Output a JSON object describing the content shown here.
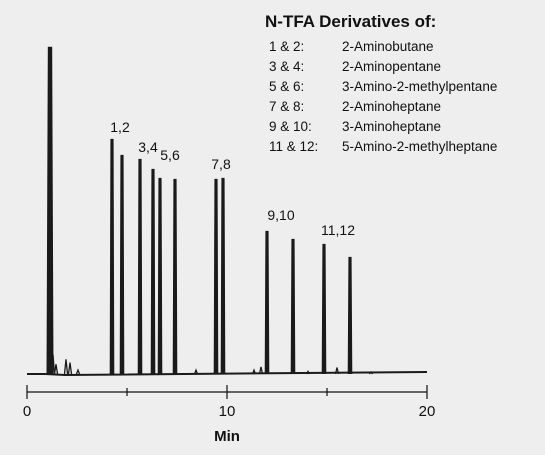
{
  "chart_data": {
    "type": "line",
    "xlabel": "Min",
    "ylabel": "",
    "xlim": [
      0,
      20
    ],
    "x_ticks": [
      0,
      10,
      20
    ],
    "minor_ticks": [
      5,
      15
    ],
    "grid": false,
    "line_color": "#1a1a1a",
    "peaks": [
      {
        "x": 1.15,
        "height": 1.0,
        "solvent": true
      },
      {
        "x": 4.25,
        "height": 0.7178
      },
      {
        "x": 4.75,
        "height": 0.6687
      },
      {
        "x": 5.65,
        "height": 0.6564
      },
      {
        "x": 6.3,
        "height": 0.6258
      },
      {
        "x": 6.65,
        "height": 0.5982
      },
      {
        "x": 7.4,
        "height": 0.5951
      },
      {
        "x": 9.45,
        "height": 0.5951
      },
      {
        "x": 9.8,
        "height": 0.5982
      },
      {
        "x": 12.0,
        "height": 0.4356
      },
      {
        "x": 13.3,
        "height": 0.411
      },
      {
        "x": 14.85,
        "height": 0.3957
      },
      {
        "x": 16.15,
        "height": 0.3558
      }
    ],
    "minor_peaks": [
      {
        "x": 1.3,
        "height": 0.06
      },
      {
        "x": 1.45,
        "height": 0.03
      },
      {
        "x": 1.95,
        "height": 0.045
      },
      {
        "x": 2.15,
        "height": 0.035
      },
      {
        "x": 2.55,
        "height": 0.012
      },
      {
        "x": 8.45,
        "height": 0.012
      },
      {
        "x": 11.35,
        "height": 0.012
      },
      {
        "x": 11.7,
        "height": 0.022
      },
      {
        "x": 14.05,
        "height": 0.008
      },
      {
        "x": 15.5,
        "height": 0.02
      },
      {
        "x": 17.2,
        "height": 0.006
      }
    ],
    "peak_labels": [
      {
        "text": "1,2",
        "x": 4.65
      },
      {
        "text": "3,4",
        "x": 6.05
      },
      {
        "text": "5,6",
        "x": 7.15
      },
      {
        "text": "7,8",
        "x": 9.7
      },
      {
        "text": "9,10",
        "x": 12.7
      },
      {
        "text": "11,12",
        "x": 15.55
      }
    ]
  },
  "legend": {
    "title": "N-TFA Derivatives of:",
    "items": [
      {
        "peaks": "1 & 2:",
        "compound": "2-Aminobutane"
      },
      {
        "peaks": "3 & 4:",
        "compound": "2-Aminopentane"
      },
      {
        "peaks": "5 & 6:",
        "compound": "3-Amino-2-methylpentane"
      },
      {
        "peaks": "7 & 8:",
        "compound": "2-Aminoheptane"
      },
      {
        "peaks": "9 & 10:",
        "compound": "3-Aminoheptane"
      },
      {
        "peaks": "11 & 12:",
        "compound": "5-Amino-2-methylheptane"
      }
    ]
  },
  "colors": {
    "background": "#eeeeee",
    "trace": "#1a1a1a",
    "axis": "#111111"
  }
}
